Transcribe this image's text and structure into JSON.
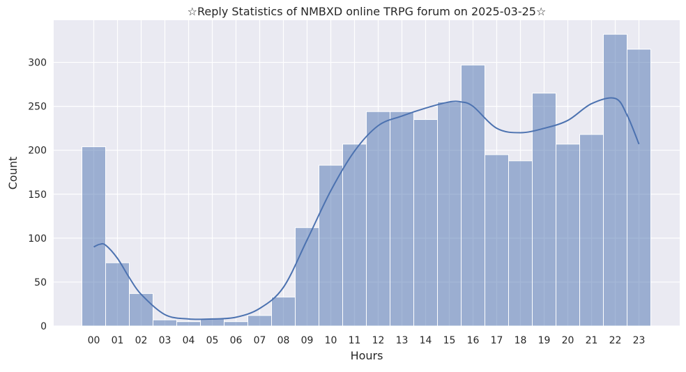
{
  "chart_data": {
    "type": "bar",
    "title": "☆Reply Statistics of NMBXD online TRPG forum on 2025-03-25☆",
    "xlabel": "Hours",
    "ylabel": "Count",
    "categories": [
      "00",
      "01",
      "02",
      "03",
      "04",
      "05",
      "06",
      "07",
      "08",
      "09",
      "10",
      "11",
      "12",
      "13",
      "14",
      "15",
      "16",
      "17",
      "18",
      "19",
      "20",
      "21",
      "22",
      "23"
    ],
    "values": [
      204,
      72,
      37,
      7,
      5,
      8,
      5,
      12,
      33,
      112,
      183,
      207,
      244,
      244,
      235,
      255,
      297,
      195,
      188,
      265,
      207,
      218,
      332,
      315
    ],
    "kde": {
      "x": [
        0,
        0.25,
        0.5,
        1,
        1.5,
        2,
        3,
        4,
        5,
        6,
        7,
        8,
        9,
        10,
        11,
        12,
        13,
        14,
        15,
        15.5,
        16,
        17,
        18,
        19,
        20,
        21,
        22,
        22.5,
        23
      ],
      "y": [
        90,
        93,
        92,
        77,
        55,
        36,
        13,
        8,
        8,
        10,
        20,
        44,
        98,
        154,
        199,
        228,
        239,
        248,
        255,
        255,
        250,
        225,
        220,
        225,
        234,
        253,
        259,
        240,
        207
      ]
    },
    "ylim": [
      0,
      348
    ],
    "yticks": [
      0,
      50,
      100,
      150,
      200,
      250,
      300
    ],
    "grid": true,
    "bar_color": "#4c72b0",
    "line_color": "#4c72b0",
    "background_color": "#eaeaf2"
  }
}
